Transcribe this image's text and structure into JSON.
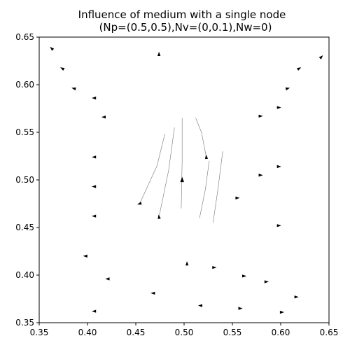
{
  "chart_data": {
    "type": "scatter",
    "title_line1": "Influence of medium with a single node",
    "title_line2": "(Np=(0.5,0.5),Nv=(0,0.1),Nw=0)",
    "xlabel": "",
    "ylabel": "",
    "xlim": [
      0.35,
      0.65
    ],
    "ylim": [
      0.35,
      0.65
    ],
    "x_ticks": [
      "0.35",
      "0.40",
      "0.45",
      "0.50",
      "0.55",
      "0.60",
      "0.65"
    ],
    "y_ticks": [
      "0.35",
      "0.40",
      "0.45",
      "0.50",
      "0.55",
      "0.60",
      "0.65"
    ],
    "grid": false,
    "node": {
      "x": 0.498,
      "y": 0.5,
      "heading_deg": 90
    },
    "agents": [
      {
        "x": 0.363,
        "y": 0.638,
        "heading_deg": 135
      },
      {
        "x": 0.374,
        "y": 0.617,
        "heading_deg": 150
      },
      {
        "x": 0.386,
        "y": 0.596,
        "heading_deg": 165
      },
      {
        "x": 0.407,
        "y": 0.586,
        "heading_deg": 180
      },
      {
        "x": 0.417,
        "y": 0.566,
        "heading_deg": 180
      },
      {
        "x": 0.474,
        "y": 0.632,
        "heading_deg": 90
      },
      {
        "x": 0.407,
        "y": 0.524,
        "heading_deg": 180
      },
      {
        "x": 0.407,
        "y": 0.493,
        "heading_deg": 180
      },
      {
        "x": 0.407,
        "y": 0.462,
        "heading_deg": 180
      },
      {
        "x": 0.454,
        "y": 0.475,
        "heading_deg": 200
      },
      {
        "x": 0.474,
        "y": 0.461,
        "heading_deg": 100
      },
      {
        "x": 0.523,
        "y": 0.524,
        "heading_deg": 95
      },
      {
        "x": 0.555,
        "y": 0.481,
        "heading_deg": 0
      },
      {
        "x": 0.579,
        "y": 0.567,
        "heading_deg": 0
      },
      {
        "x": 0.579,
        "y": 0.505,
        "heading_deg": 0
      },
      {
        "x": 0.598,
        "y": 0.576,
        "heading_deg": 0
      },
      {
        "x": 0.598,
        "y": 0.514,
        "heading_deg": 0
      },
      {
        "x": 0.598,
        "y": 0.452,
        "heading_deg": 0
      },
      {
        "x": 0.607,
        "y": 0.596,
        "heading_deg": 15
      },
      {
        "x": 0.619,
        "y": 0.617,
        "heading_deg": 30
      },
      {
        "x": 0.642,
        "y": 0.629,
        "heading_deg": 45
      },
      {
        "x": 0.398,
        "y": 0.42,
        "heading_deg": 180
      },
      {
        "x": 0.421,
        "y": 0.396,
        "heading_deg": 180
      },
      {
        "x": 0.468,
        "y": 0.381,
        "heading_deg": 180
      },
      {
        "x": 0.407,
        "y": 0.362,
        "heading_deg": 180
      },
      {
        "x": 0.503,
        "y": 0.412,
        "heading_deg": 90
      },
      {
        "x": 0.531,
        "y": 0.408,
        "heading_deg": 0
      },
      {
        "x": 0.517,
        "y": 0.368,
        "heading_deg": 180
      },
      {
        "x": 0.562,
        "y": 0.399,
        "heading_deg": 0
      },
      {
        "x": 0.558,
        "y": 0.365,
        "heading_deg": 0
      },
      {
        "x": 0.585,
        "y": 0.393,
        "heading_deg": 0
      },
      {
        "x": 0.601,
        "y": 0.361,
        "heading_deg": 0
      },
      {
        "x": 0.616,
        "y": 0.377,
        "heading_deg": 0
      }
    ],
    "trails": [
      [
        [
          0.474,
          0.461
        ],
        [
          0.484,
          0.51
        ],
        [
          0.49,
          0.555
        ]
      ],
      [
        [
          0.454,
          0.475
        ],
        [
          0.472,
          0.515
        ],
        [
          0.48,
          0.548
        ]
      ],
      [
        [
          0.497,
          0.47
        ],
        [
          0.498,
          0.52
        ],
        [
          0.498,
          0.565
        ]
      ],
      [
        [
          0.523,
          0.524
        ],
        [
          0.518,
          0.55
        ],
        [
          0.512,
          0.565
        ]
      ],
      [
        [
          0.516,
          0.46
        ],
        [
          0.522,
          0.49
        ],
        [
          0.526,
          0.52
        ]
      ],
      [
        [
          0.53,
          0.455
        ],
        [
          0.535,
          0.49
        ],
        [
          0.54,
          0.53
        ]
      ]
    ]
  }
}
